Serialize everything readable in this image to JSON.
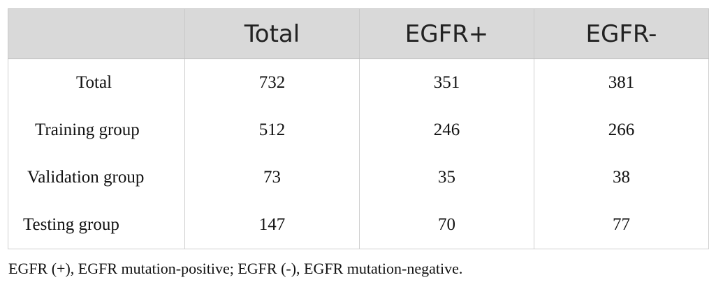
{
  "table": {
    "headers": [
      "",
      "Total",
      "EGFR+",
      "EGFR-"
    ],
    "rows": [
      {
        "label": "Total",
        "total": "732",
        "egfr_pos": "351",
        "egfr_neg": "381"
      },
      {
        "label": "Training group",
        "total": "512",
        "egfr_pos": "246",
        "egfr_neg": "266"
      },
      {
        "label": "Validation group",
        "total": "73",
        "egfr_pos": "35",
        "egfr_neg": "38"
      },
      {
        "label": "Testing group",
        "total": "147",
        "egfr_pos": "70",
        "egfr_neg": "77"
      }
    ]
  },
  "footnote": "EGFR (+), EGFR mutation-positive; EGFR (-), EGFR mutation-negative.",
  "colors": {
    "header_background": "#d9d9d9",
    "border": "#cfcfcf",
    "text": "#111111"
  }
}
